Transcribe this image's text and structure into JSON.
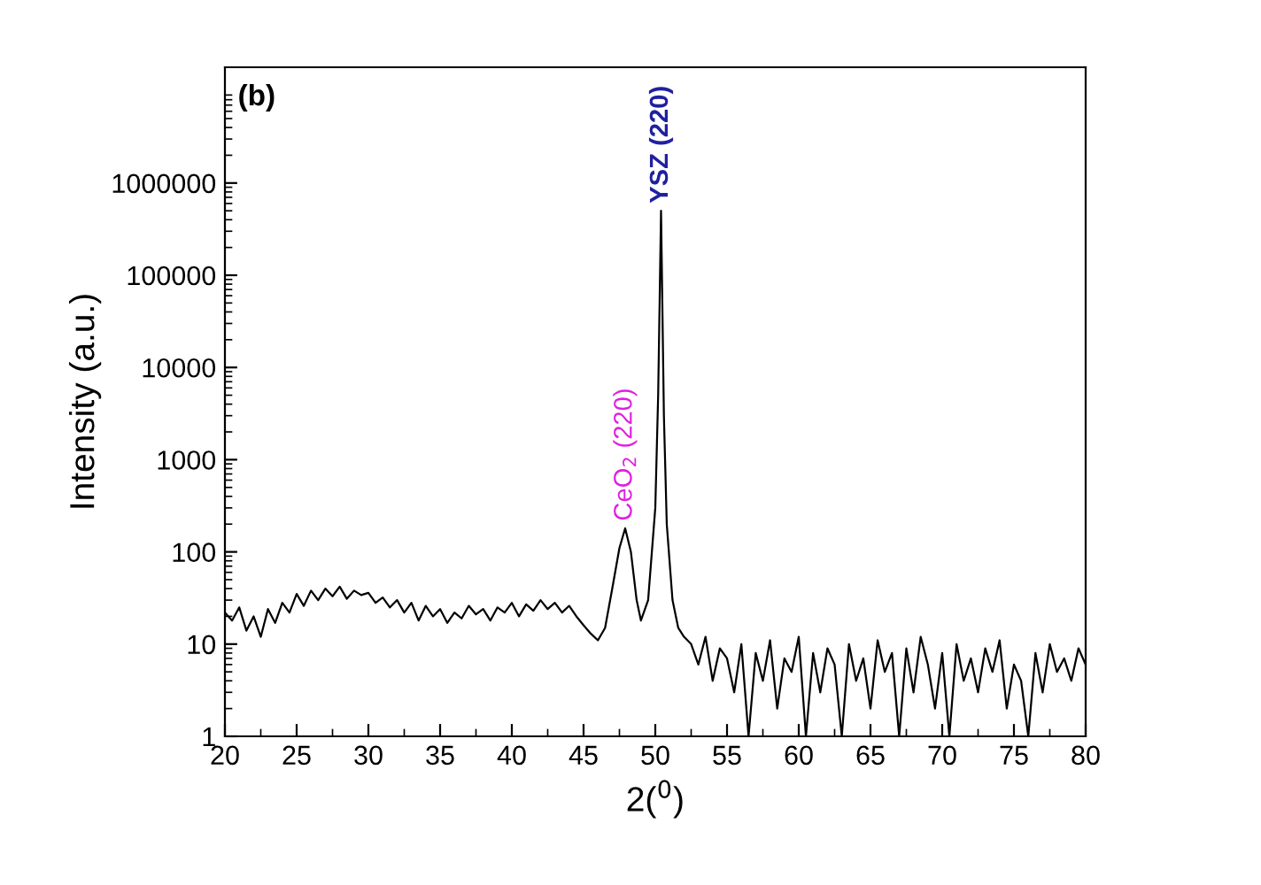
{
  "chart_data": {
    "type": "line",
    "xlabel": "2($^{0}$)",
    "ylabel": "Intensity (a.u.)",
    "log": "y",
    "xlim": [
      20,
      80
    ],
    "xticks": [
      20,
      25,
      30,
      35,
      40,
      45,
      50,
      55,
      60,
      65,
      70,
      75,
      80
    ],
    "ylim": [
      1,
      18000000
    ],
    "yticks": [
      1,
      10,
      100,
      1000,
      10000,
      100000,
      1000000
    ],
    "grid": false,
    "legend": false,
    "marker": "none",
    "line_style": "solid",
    "series": [
      {
        "color": "#000000",
        "x": [
          20,
          20.5,
          21,
          21.5,
          22,
          22.5,
          23,
          23.5,
          24,
          24.5,
          25,
          25.5,
          26,
          26.5,
          27,
          27.5,
          28,
          28.5,
          29,
          29.5,
          30,
          30.5,
          31,
          31.5,
          32,
          32.5,
          33,
          33.5,
          34,
          34.5,
          35,
          35.5,
          36,
          36.5,
          37,
          37.5,
          38,
          38.5,
          39,
          39.5,
          40,
          40.5,
          41,
          41.5,
          42,
          42.5,
          43,
          43.5,
          44,
          44.5,
          45,
          45.5,
          46,
          46.5,
          47,
          47.5,
          47.9,
          48.3,
          48.7,
          49,
          49.5,
          50,
          50.2,
          50.4,
          50.6,
          50.8,
          51.2,
          51.6,
          52,
          52.5,
          53,
          53.5,
          54,
          54.5,
          55,
          55.5,
          56,
          56.5,
          57,
          57.5,
          58,
          58.5,
          59,
          59.5,
          60,
          60.5,
          61,
          61.5,
          62,
          62.5,
          63,
          63.5,
          64,
          64.5,
          65,
          65.5,
          66,
          66.5,
          67,
          67.5,
          68,
          68.5,
          69,
          69.5,
          70,
          70.5,
          71,
          71.5,
          72,
          72.5,
          73,
          73.5,
          74,
          74.5,
          75,
          75.5,
          76,
          76.5,
          77,
          77.5,
          78,
          78.5,
          79,
          79.5,
          80
        ],
        "values": [
          22,
          18,
          25,
          14,
          20,
          12,
          24,
          17,
          28,
          22,
          35,
          26,
          38,
          30,
          40,
          33,
          42,
          31,
          38,
          34,
          36,
          28,
          32,
          25,
          30,
          22,
          28,
          18,
          26,
          20,
          24,
          17,
          22,
          19,
          26,
          21,
          24,
          18,
          25,
          22,
          28,
          20,
          27,
          23,
          30,
          24,
          28,
          22,
          26,
          20,
          16,
          13,
          11,
          15,
          40,
          110,
          180,
          100,
          30,
          18,
          30,
          300,
          5000,
          500000,
          3000,
          200,
          30,
          15,
          12,
          10,
          6,
          12,
          4,
          9,
          7,
          3,
          10,
          1,
          8,
          4,
          11,
          2,
          7,
          5,
          12,
          1,
          8,
          3,
          9,
          6,
          1,
          10,
          4,
          7,
          2,
          11,
          5,
          8,
          1,
          9,
          3,
          12,
          6,
          2,
          8,
          1,
          10,
          4,
          7,
          3,
          9,
          5,
          11,
          2,
          6,
          4,
          1,
          8,
          3,
          10,
          5,
          7,
          4,
          9,
          6
        ]
      }
    ],
    "annotations": [
      "(b)",
      {
        "text": "CeO$_{2}$ (220)",
        "x": 47.9,
        "y": 180
      },
      {
        "text": "YSZ (220)",
        "x": 50.4,
        "y": 500000
      }
    ]
  }
}
